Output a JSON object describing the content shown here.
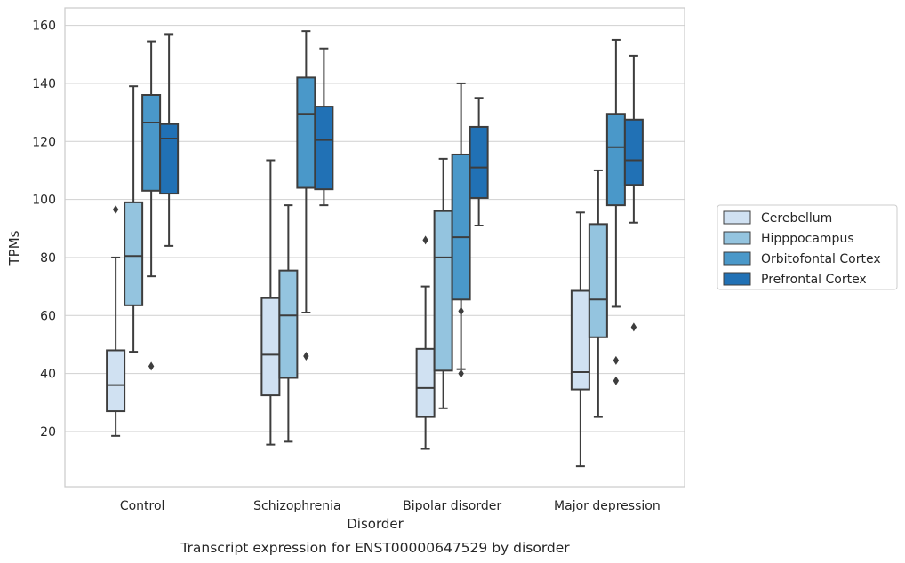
{
  "caption": "Transcript expression for ENST00000647529 by disorder",
  "chart_data": {
    "type": "box",
    "xlabel": "Disorder",
    "ylabel": "TPMs",
    "ylim": [
      1,
      166
    ],
    "yticks": [
      20,
      40,
      60,
      80,
      100,
      120,
      140,
      160
    ],
    "grid": "horizontal",
    "legend_position": "right",
    "categories": [
      "Control",
      "Schizophrenia",
      "Bipolar disorder",
      "Major depression"
    ],
    "series": [
      {
        "name": "Cerebellum",
        "color": "#d0e1f2",
        "boxes": [
          {
            "whislo": 18.5,
            "q1": 27,
            "med": 36,
            "q3": 48,
            "whishi": 80,
            "fliers": [
              96.5
            ]
          },
          {
            "whislo": 15.5,
            "q1": 32.5,
            "med": 46.5,
            "q3": 66,
            "whishi": 113.5,
            "fliers": []
          },
          {
            "whislo": 14,
            "q1": 25,
            "med": 35,
            "q3": 48.5,
            "whishi": 70,
            "fliers": [
              86
            ]
          },
          {
            "whislo": 8,
            "q1": 34.5,
            "med": 40.5,
            "q3": 68.5,
            "whishi": 95.5,
            "fliers": []
          }
        ]
      },
      {
        "name": "Hipppocampus",
        "color": "#94c4df",
        "boxes": [
          {
            "whislo": 47.5,
            "q1": 63.5,
            "med": 80.5,
            "q3": 99,
            "whishi": 139,
            "fliers": []
          },
          {
            "whislo": 16.5,
            "q1": 38.5,
            "med": 60,
            "q3": 75.5,
            "whishi": 98,
            "fliers": []
          },
          {
            "whislo": 28,
            "q1": 41,
            "med": 80,
            "q3": 96,
            "whishi": 114,
            "fliers": []
          },
          {
            "whislo": 25,
            "q1": 52.5,
            "med": 65.5,
            "q3": 91.5,
            "whishi": 110,
            "fliers": []
          }
        ]
      },
      {
        "name": "Orbitofontal Cortex",
        "color": "#4a98c9",
        "boxes": [
          {
            "whislo": 73.5,
            "q1": 103,
            "med": 126.5,
            "q3": 136,
            "whishi": 154.5,
            "fliers": [
              42.5
            ]
          },
          {
            "whislo": 61,
            "q1": 104,
            "med": 129.5,
            "q3": 142,
            "whishi": 158,
            "fliers": [
              46
            ]
          },
          {
            "whislo": 41.5,
            "q1": 65.5,
            "med": 87,
            "q3": 115.5,
            "whishi": 140,
            "fliers": [
              61.5,
              40
            ]
          },
          {
            "whislo": 63,
            "q1": 98,
            "med": 118,
            "q3": 129.5,
            "whishi": 155,
            "fliers": [
              44.5,
              37.5
            ]
          }
        ]
      },
      {
        "name": "Prefrontal Cortex",
        "color": "#2171b5",
        "boxes": [
          {
            "whislo": 84,
            "q1": 102,
            "med": 121,
            "q3": 126,
            "whishi": 157,
            "fliers": []
          },
          {
            "whislo": 98,
            "q1": 103.5,
            "med": 120.5,
            "q3": 132,
            "whishi": 152,
            "fliers": []
          },
          {
            "whislo": 91,
            "q1": 100.5,
            "med": 111,
            "q3": 125,
            "whishi": 135,
            "fliers": []
          },
          {
            "whislo": 92,
            "q1": 105,
            "med": 113.5,
            "q3": 127.5,
            "whishi": 149.5,
            "fliers": [
              56
            ]
          }
        ]
      }
    ]
  }
}
